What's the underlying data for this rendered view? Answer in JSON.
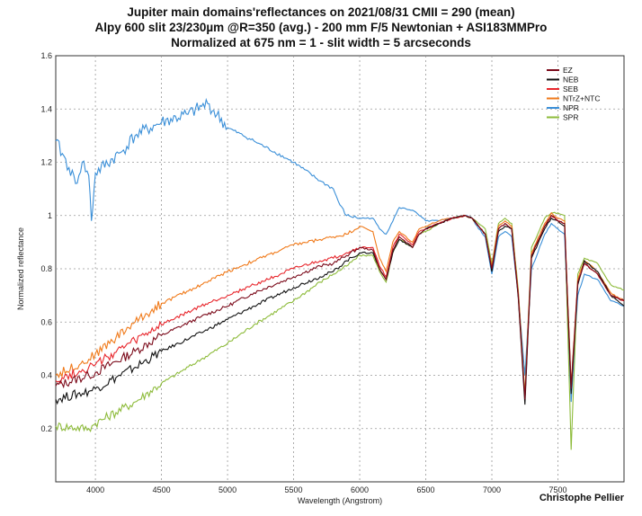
{
  "titles": [
    "Jupiter main domains'reflectances on 2021/08/31 CMII = 290 (mean)",
    "Alpy 600 slit 23/230µm @R=350 (avg.) - 200 mm F/5 Newtonian + ASI183MMPro",
    "Normalized at 675 nm = 1 - slit width = 5 arcseconds"
  ],
  "credit": "Christophe Pellier",
  "chart_data": {
    "type": "line",
    "title": "Jupiter main domains'reflectances on 2021/08/31 CMII = 290 (mean)",
    "xlabel": "Wavelength (Angstrom)",
    "ylabel": "Normalized reflectance",
    "xlim": [
      3700,
      8000
    ],
    "ylim": [
      0,
      1.6
    ],
    "xticks": [
      4000,
      4500,
      5000,
      5500,
      6000,
      6500,
      7000,
      7500
    ],
    "xtick_labels": [
      "4000",
      "4500",
      "5000",
      "5500",
      "6000",
      "6500",
      "7000",
      "7500"
    ],
    "yticks": [
      0.2,
      0.4,
      0.6,
      0.8,
      1.0,
      1.2,
      1.4,
      1.6
    ],
    "ytick_labels": [
      "0.2",
      "0.4",
      "0.6",
      "0.8",
      "1",
      "1.2",
      "1.4",
      "1.6"
    ],
    "grid": true,
    "legend_position": "top-right",
    "series": [
      {
        "name": "EZ",
        "color": "#7b0a1a",
        "x": [
          3700,
          3950,
          4000,
          4300,
          4500,
          4800,
          5000,
          5200,
          5500,
          5700,
          5800,
          5900,
          6000,
          6100,
          6150,
          6200,
          6250,
          6300,
          6400,
          6450,
          6500,
          6600,
          6700,
          6800,
          6850,
          6900,
          6950,
          7000,
          7050,
          7100,
          7150,
          7200,
          7250,
          7300,
          7400,
          7450,
          7500,
          7550,
          7600,
          7650,
          7700,
          7800,
          7900,
          8000
        ],
        "y": [
          0.36,
          0.4,
          0.41,
          0.49,
          0.55,
          0.62,
          0.66,
          0.71,
          0.77,
          0.81,
          0.82,
          0.85,
          0.88,
          0.87,
          0.8,
          0.76,
          0.87,
          0.92,
          0.88,
          0.93,
          0.95,
          0.97,
          0.99,
          1.0,
          0.99,
          0.96,
          0.93,
          0.8,
          0.95,
          0.97,
          0.95,
          0.7,
          0.31,
          0.85,
          0.96,
          1.0,
          0.98,
          0.97,
          0.35,
          0.75,
          0.82,
          0.78,
          0.7,
          0.68
        ]
      },
      {
        "name": "NEB",
        "color": "#111111",
        "x": [
          3700,
          3950,
          4000,
          4300,
          4500,
          4800,
          5000,
          5200,
          5500,
          5700,
          5800,
          5900,
          6000,
          6100,
          6150,
          6200,
          6250,
          6300,
          6400,
          6450,
          6500,
          6600,
          6700,
          6800,
          6850,
          6900,
          6950,
          7000,
          7050,
          7100,
          7150,
          7200,
          7250,
          7300,
          7400,
          7450,
          7500,
          7550,
          7600,
          7650,
          7700,
          7800,
          7900,
          8000
        ],
        "y": [
          0.31,
          0.34,
          0.35,
          0.43,
          0.49,
          0.56,
          0.61,
          0.66,
          0.73,
          0.77,
          0.79,
          0.83,
          0.86,
          0.86,
          0.8,
          0.76,
          0.86,
          0.91,
          0.88,
          0.93,
          0.95,
          0.97,
          0.99,
          1.0,
          0.99,
          0.96,
          0.93,
          0.79,
          0.94,
          0.96,
          0.95,
          0.69,
          0.29,
          0.84,
          0.95,
          0.99,
          0.98,
          0.96,
          0.33,
          0.74,
          0.83,
          0.79,
          0.7,
          0.66
        ]
      },
      {
        "name": "SEB",
        "color": "#e8262c",
        "x": [
          3700,
          3950,
          4000,
          4300,
          4500,
          4800,
          5000,
          5200,
          5500,
          5700,
          5800,
          5900,
          6000,
          6100,
          6150,
          6200,
          6250,
          6300,
          6400,
          6450,
          6500,
          6600,
          6700,
          6800,
          6850,
          6900,
          6950,
          7000,
          7050,
          7100,
          7150,
          7200,
          7250,
          7300,
          7400,
          7450,
          7500,
          7550,
          7600,
          7650,
          7700,
          7800,
          7900,
          8000
        ],
        "y": [
          0.38,
          0.43,
          0.44,
          0.53,
          0.59,
          0.66,
          0.7,
          0.74,
          0.8,
          0.83,
          0.84,
          0.86,
          0.88,
          0.88,
          0.81,
          0.77,
          0.88,
          0.93,
          0.89,
          0.94,
          0.95,
          0.97,
          0.99,
          1.0,
          0.99,
          0.96,
          0.93,
          0.8,
          0.95,
          0.97,
          0.95,
          0.7,
          0.31,
          0.85,
          0.96,
          1.0,
          0.98,
          0.97,
          0.35,
          0.75,
          0.82,
          0.78,
          0.7,
          0.68
        ]
      },
      {
        "name": "NTrZ+NTC",
        "color": "#f07a1a",
        "x": [
          3700,
          3950,
          4000,
          4300,
          4500,
          4800,
          5000,
          5200,
          5500,
          5700,
          5800,
          5900,
          6000,
          6100,
          6150,
          6200,
          6250,
          6300,
          6400,
          6450,
          6500,
          6600,
          6700,
          6800,
          6850,
          6900,
          6950,
          7000,
          7050,
          7100,
          7150,
          7200,
          7250,
          7300,
          7400,
          7450,
          7500,
          7550,
          7600,
          7650,
          7700,
          7800,
          7900,
          8000
        ],
        "y": [
          0.4,
          0.46,
          0.48,
          0.6,
          0.67,
          0.74,
          0.79,
          0.83,
          0.89,
          0.91,
          0.92,
          0.93,
          0.96,
          0.94,
          0.84,
          0.79,
          0.9,
          0.94,
          0.9,
          0.95,
          0.96,
          0.98,
          0.99,
          1.0,
          0.99,
          0.96,
          0.93,
          0.81,
          0.96,
          0.98,
          0.96,
          0.71,
          0.32,
          0.86,
          0.97,
          1.01,
          0.99,
          0.98,
          0.36,
          0.76,
          0.83,
          0.79,
          0.71,
          0.68
        ]
      },
      {
        "name": "NPR",
        "color": "#3a8fd8",
        "x": [
          3700,
          3800,
          3850,
          3900,
          3950,
          3970,
          4000,
          4200,
          4300,
          4500,
          4700,
          4850,
          5000,
          5200,
          5500,
          5700,
          5800,
          5850,
          5900,
          6000,
          6100,
          6150,
          6200,
          6300,
          6400,
          6500,
          6600,
          6700,
          6800,
          6850,
          6900,
          6950,
          7000,
          7050,
          7100,
          7150,
          7200,
          7250,
          7300,
          7400,
          7450,
          7500,
          7550,
          7600,
          7650,
          7700,
          7800,
          7900,
          8000
        ],
        "y": [
          1.28,
          1.18,
          1.12,
          1.2,
          1.15,
          0.98,
          1.16,
          1.24,
          1.3,
          1.35,
          1.38,
          1.42,
          1.33,
          1.28,
          1.2,
          1.13,
          1.1,
          1.04,
          1.0,
          0.99,
          0.99,
          0.95,
          0.93,
          1.03,
          1.02,
          0.98,
          0.98,
          0.99,
          1.0,
          0.99,
          0.95,
          0.92,
          0.78,
          0.92,
          0.94,
          0.92,
          0.7,
          0.4,
          0.8,
          0.93,
          0.97,
          0.95,
          0.93,
          0.3,
          0.7,
          0.78,
          0.76,
          0.68,
          0.66
        ]
      },
      {
        "name": "SPR",
        "color": "#8dbb3a",
        "x": [
          3700,
          3950,
          4000,
          4300,
          4500,
          4800,
          5000,
          5200,
          5500,
          5700,
          5800,
          5900,
          6000,
          6100,
          6150,
          6200,
          6250,
          6300,
          6400,
          6450,
          6500,
          6600,
          6700,
          6800,
          6850,
          6900,
          6950,
          7000,
          7050,
          7100,
          7150,
          7200,
          7250,
          7300,
          7400,
          7450,
          7500,
          7550,
          7600,
          7650,
          7700,
          7800,
          7900,
          8000
        ],
        "y": [
          0.21,
          0.2,
          0.22,
          0.3,
          0.37,
          0.46,
          0.52,
          0.59,
          0.68,
          0.75,
          0.78,
          0.81,
          0.85,
          0.85,
          0.79,
          0.75,
          0.86,
          0.91,
          0.88,
          0.93,
          0.94,
          0.97,
          0.99,
          1.0,
          0.99,
          0.97,
          0.95,
          0.82,
          0.97,
          0.99,
          0.97,
          0.72,
          0.33,
          0.88,
          0.99,
          1.01,
          1.01,
          1.0,
          0.12,
          0.78,
          0.84,
          0.82,
          0.74,
          0.72
        ]
      }
    ]
  }
}
